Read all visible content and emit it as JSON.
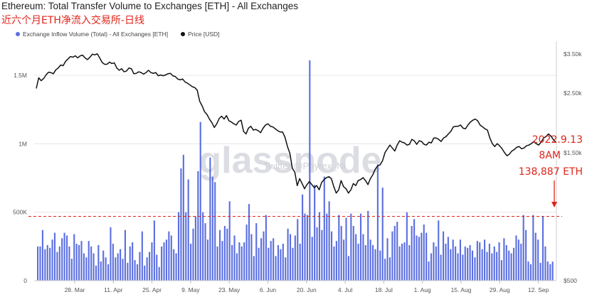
{
  "header": {
    "title": "Ethereum: Total Transfer Volume to Exchanges [ETH] - All Exchanges",
    "subtitle": "近六个月ETH净流入交易所-日线"
  },
  "legend": [
    {
      "label": "Exchange Inflow Volume (Total) - All Exchanges [ETH]",
      "color": "#5b6fe0"
    },
    {
      "label": "Price [USD]",
      "color": "#111111"
    }
  ],
  "watermark": {
    "brand": "glassnode",
    "handle": "Twitter @Phyrex_Ni"
  },
  "annotation": {
    "line1": "2022.9.13",
    "line2": "8AM",
    "line3": "138,887 ETH"
  },
  "colors": {
    "bars": "#5b6fe0",
    "price": "#111111",
    "reference": "#e0241b"
  },
  "chart_data": {
    "type": "bar",
    "title": "Ethereum: Total Transfer Volume to Exchanges [ETH] - All Exchanges",
    "x_tick_labels": [
      "28. Mar",
      "11. Apr",
      "25. Apr",
      "9. May",
      "23. May",
      "6. Jun",
      "20. Jun",
      "4. Jul",
      "18. Jul",
      "1. Aug",
      "15. Aug",
      "29. Aug",
      "12. Sep"
    ],
    "y_left": {
      "ticks": [
        0,
        500000,
        1000000,
        1500000
      ],
      "tick_labels": [
        "0",
        "500K",
        "1M",
        "1.5M"
      ],
      "lim": [
        0,
        1750000
      ]
    },
    "y_right": {
      "ticks": [
        500,
        1500,
        2500,
        3500
      ],
      "tick_labels": [
        "$500",
        "$1.50k",
        "$2.50k",
        "$3.50k"
      ],
      "lim": [
        500,
        3900
      ],
      "scale": "log"
    },
    "reference_line": {
      "value": 470000,
      "style": "dashed"
    },
    "series": [
      {
        "name": "Exchange Inflow Volume (Total) - All Exchanges [ETH]",
        "axis": "left",
        "values": [
          250000,
          250000,
          370000,
          230000,
          260000,
          240000,
          300000,
          350000,
          210000,
          250000,
          310000,
          350000,
          330000,
          250000,
          160000,
          340000,
          270000,
          260000,
          290000,
          200000,
          170000,
          290000,
          250000,
          200000,
          110000,
          260000,
          140000,
          220000,
          170000,
          120000,
          390000,
          270000,
          170000,
          200000,
          230000,
          160000,
          370000,
          130000,
          250000,
          280000,
          150000,
          120000,
          210000,
          360000,
          110000,
          170000,
          210000,
          280000,
          440000,
          190000,
          100000,
          250000,
          280000,
          300000,
          360000,
          330000,
          230000,
          200000,
          500000,
          820000,
          920000,
          500000,
          740000,
          270000,
          380000,
          470000,
          800000,
          1160000,
          500000,
          420000,
          300000,
          900000,
          760000,
          720000,
          250000,
          370000,
          290000,
          400000,
          380000,
          580000,
          260000,
          330000,
          200000,
          280000,
          250000,
          280000,
          410000,
          560000,
          340000,
          180000,
          420000,
          240000,
          310000,
          360000,
          480000,
          240000,
          290000,
          310000,
          180000,
          260000,
          230000,
          270000,
          170000,
          380000,
          340000,
          240000,
          330000,
          450000,
          270000,
          630000,
          490000,
          480000,
          1610000,
          320000,
          700000,
          390000,
          500000,
          370000,
          760000,
          490000,
          580000,
          360000,
          250000,
          290000,
          480000,
          400000,
          300000,
          460000,
          180000,
          490000,
          400000,
          340000,
          270000,
          490000,
          340000,
          260000,
          510000,
          300000,
          260000,
          230000,
          850000,
          220000,
          680000,
          160000,
          310000,
          170000,
          360000,
          400000,
          430000,
          250000,
          270000,
          280000,
          500000,
          260000,
          400000,
          450000,
          330000,
          320000,
          350000,
          410000,
          350000,
          140000,
          200000,
          280000,
          250000,
          440000,
          190000,
          360000,
          270000,
          320000,
          230000,
          300000,
          250000,
          200000,
          300000,
          190000,
          250000,
          240000,
          260000,
          220000,
          170000,
          290000,
          280000,
          230000,
          300000,
          210000,
          270000,
          200000,
          250000,
          210000,
          280000,
          150000,
          310000,
          260000,
          220000,
          200000,
          240000,
          330000,
          300000,
          270000,
          480000,
          370000,
          140000,
          120000,
          480000,
          350000,
          300000,
          130000,
          470000,
          250000,
          140000,
          120000,
          138887
        ]
      },
      {
        "name": "Price [USD]",
        "axis": "right",
        "x_start": "2022-03-14",
        "x_end": "2022-09-13",
        "values": [
          2600,
          2850,
          2780,
          2830,
          2920,
          2990,
          2980,
          2950,
          3050,
          3100,
          3180,
          3160,
          3280,
          3350,
          3420,
          3400,
          3440,
          3380,
          3440,
          3460,
          3380,
          3330,
          3400,
          3490,
          3470,
          3500,
          3380,
          3250,
          3200,
          3200,
          3260,
          3220,
          3240,
          3100,
          3040,
          3080,
          3000,
          3020,
          3100,
          3080,
          2950,
          2960,
          3000,
          2980,
          2940,
          2980,
          3040,
          2980,
          2960,
          2980,
          2900,
          2920,
          2900,
          2920,
          2950,
          2960,
          2900,
          2880,
          2820,
          2800,
          2820,
          2750,
          2720,
          2680,
          2640,
          2620,
          2560,
          2330,
          2240,
          2130,
          2080,
          2000,
          1940,
          1860,
          1920,
          2010,
          2050,
          2000,
          2060,
          1970,
          1950,
          1920,
          1900,
          1960,
          1980,
          1800,
          1760,
          1850,
          1880,
          1820,
          1830,
          1810,
          1780,
          1850,
          1900,
          1920,
          1880,
          1870,
          1840,
          1810,
          1790,
          1790,
          1710,
          1580,
          1490,
          1310,
          1270,
          1130,
          1200,
          1150,
          1100,
          1140,
          1170,
          1140,
          1110,
          1130,
          1090,
          1160,
          1190,
          1210,
          1220,
          1200,
          1120,
          1060,
          1090,
          1180,
          1120,
          1100,
          1060,
          1090,
          1150,
          1130,
          1180,
          1190,
          1210,
          1180,
          1140,
          1200,
          1240,
          1300,
          1340,
          1350,
          1400,
          1500,
          1550,
          1600,
          1560,
          1520,
          1600,
          1660,
          1640,
          1630,
          1600,
          1610,
          1680,
          1660,
          1610,
          1660,
          1650,
          1610,
          1600,
          1640,
          1630,
          1700,
          1700,
          1680,
          1650,
          1700,
          1720,
          1760,
          1800,
          1870,
          1880,
          1880,
          1900,
          1850,
          1840,
          1900,
          1950,
          1980,
          2000,
          1970,
          1900,
          1870,
          1840,
          1820,
          1700,
          1620,
          1580,
          1620,
          1590,
          1550,
          1500,
          1460,
          1480,
          1520,
          1540,
          1570,
          1580,
          1550,
          1560,
          1590,
          1600,
          1620,
          1650,
          1620,
          1600,
          1640,
          1700,
          1720,
          1760,
          1730,
          1680,
          1640
        ]
      }
    ]
  }
}
